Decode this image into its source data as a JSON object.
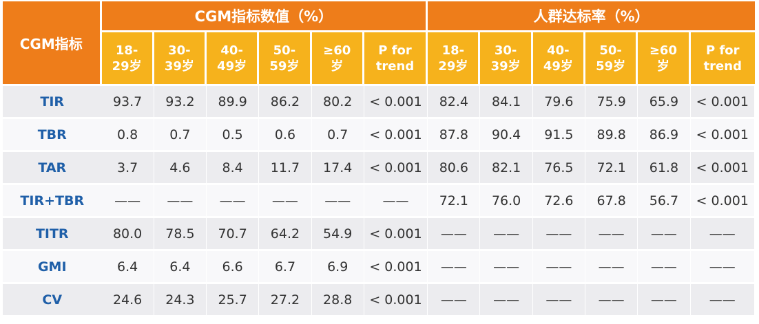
{
  "table": {
    "corner_label": "CGM指标",
    "group_headers": [
      "CGM指标数值（%）",
      "人群达标率（%）"
    ],
    "sub_headers": [
      [
        "18-",
        "29岁"
      ],
      [
        "30-",
        "39岁"
      ],
      [
        "40-",
        "49岁"
      ],
      [
        "50-",
        "59岁"
      ],
      [
        "≥60",
        "岁"
      ],
      [
        "P for",
        "trend"
      ],
      [
        "18-",
        "29岁"
      ],
      [
        "30-",
        "39岁"
      ],
      [
        "40-",
        "49岁"
      ],
      [
        "50-",
        "59岁"
      ],
      [
        "≥60",
        "岁"
      ],
      [
        "P for",
        "trend"
      ]
    ],
    "rows": [
      {
        "label": "TIR",
        "cells": [
          "93.7",
          "93.2",
          "89.9",
          "86.2",
          "80.2",
          "< 0.001",
          "82.4",
          "84.1",
          "79.6",
          "75.9",
          "65.9",
          "< 0.001"
        ]
      },
      {
        "label": "TBR",
        "cells": [
          "0.8",
          "0.7",
          "0.5",
          "0.6",
          "0.7",
          "< 0.001",
          "87.8",
          "90.4",
          "91.5",
          "89.8",
          "86.9",
          "< 0.001"
        ]
      },
      {
        "label": "TAR",
        "cells": [
          "3.7",
          "4.6",
          "8.4",
          "11.7",
          "17.4",
          "< 0.001",
          "80.6",
          "82.1",
          "76.5",
          "72.1",
          "61.8",
          "< 0.001"
        ]
      },
      {
        "label": "TIR+TBR",
        "cells": [
          "——",
          "——",
          "——",
          "——",
          "——",
          "——",
          "72.1",
          "76.0",
          "72.6",
          "67.8",
          "56.7",
          "< 0.001"
        ]
      },
      {
        "label": "TITR",
        "cells": [
          "80.0",
          "78.5",
          "70.7",
          "64.2",
          "54.9",
          "< 0.001",
          "——",
          "——",
          "——",
          "——",
          "——",
          "——"
        ]
      },
      {
        "label": "GMI",
        "cells": [
          "6.4",
          "6.4",
          "6.6",
          "6.7",
          "6.9",
          "< 0.001",
          "——",
          "——",
          "——",
          "——",
          "——",
          "——"
        ]
      },
      {
        "label": "CV",
        "cells": [
          "24.6",
          "24.3",
          "25.7",
          "27.2",
          "28.8",
          "< 0.001",
          "——",
          "——",
          "——",
          "——",
          "——",
          "——"
        ]
      }
    ]
  },
  "colors": {
    "header_orange": "#ee7d1a",
    "subheader_yellow": "#f6b21c",
    "rowhead_blue": "#1f5fa8"
  }
}
